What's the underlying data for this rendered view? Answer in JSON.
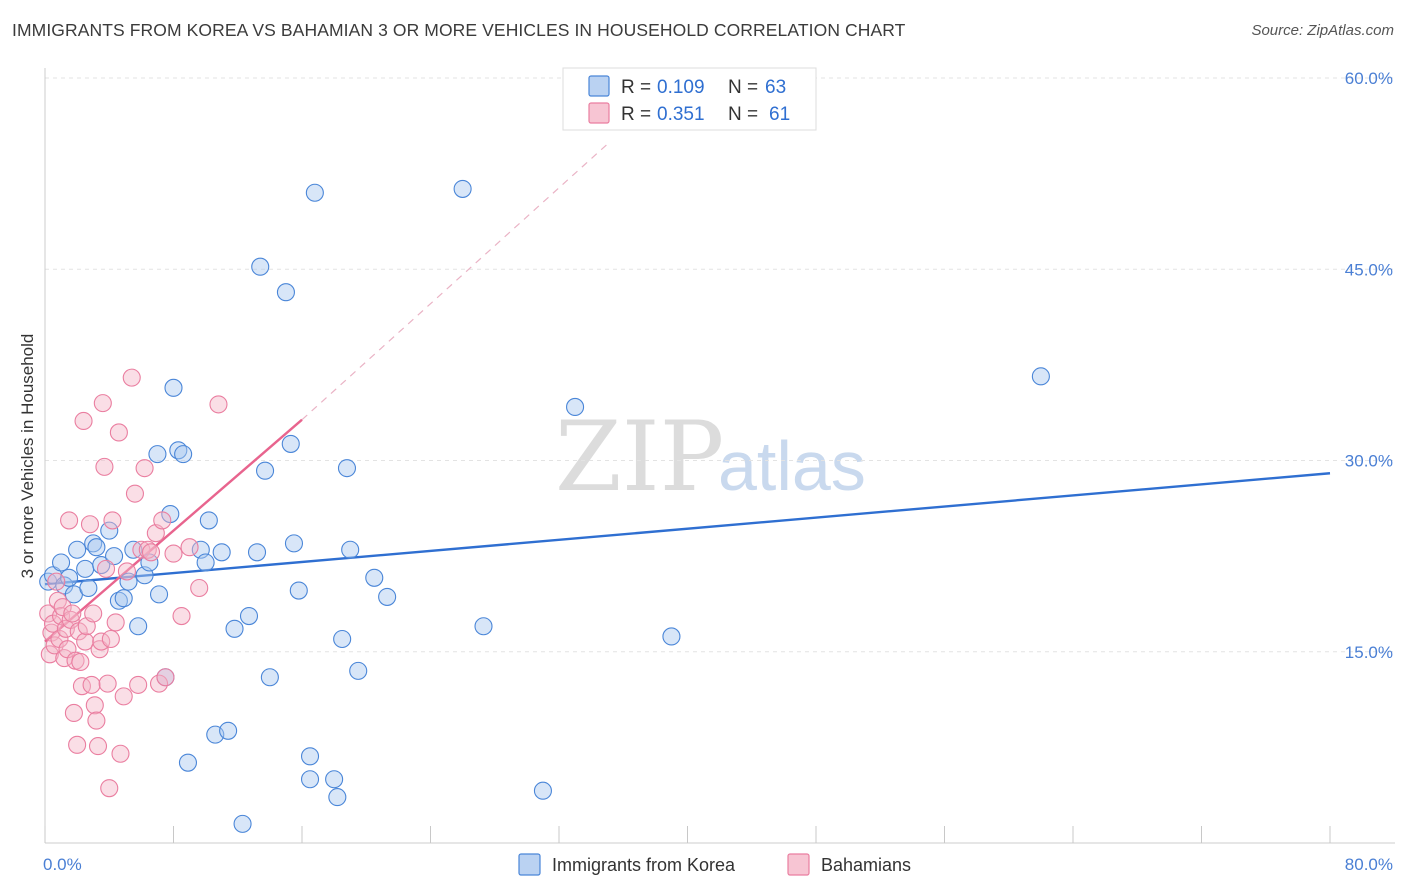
{
  "title": "IMMIGRANTS FROM KOREA VS BAHAMIAN 3 OR MORE VEHICLES IN HOUSEHOLD CORRELATION CHART",
  "source": "Source: ZipAtlas.com",
  "watermark": {
    "zip": "ZIP",
    "atlas": "atlas"
  },
  "legend": {
    "r_label": "R =",
    "n_label": "N =",
    "rows": [
      {
        "r": "0.109",
        "n": "63",
        "color": "#a9c7ef"
      },
      {
        "r": "0.351",
        "n": "61",
        "color": "#f5b6c8"
      }
    ]
  },
  "chart_data": {
    "type": "scatter",
    "title": "IMMIGRANTS FROM KOREA VS BAHAMIAN 3 OR MORE VEHICLES IN HOUSEHOLD CORRELATION CHART",
    "xlabel": "",
    "ylabel": "3 or more Vehicles in Household",
    "xlim": [
      0,
      80
    ],
    "ylim": [
      0,
      60
    ],
    "x_tick_labels": [
      "0.0%",
      "80.0%"
    ],
    "y_ticks": [
      15,
      30,
      45,
      60
    ],
    "y_tick_labels": [
      "15.0%",
      "30.0%",
      "45.0%",
      "60.0%"
    ],
    "grid": true,
    "legend_position": "top-center",
    "series": [
      {
        "name": "Immigrants from Korea",
        "color": "#4a86d8",
        "fill": "#a9c7ef",
        "trend": {
          "x": [
            0,
            80
          ],
          "y": [
            20.3,
            29.0
          ],
          "color": "#2f6fd1"
        },
        "points": [
          [
            0.2,
            20.5
          ],
          [
            0.5,
            21.0
          ],
          [
            1.0,
            22.0
          ],
          [
            1.2,
            20.2
          ],
          [
            1.5,
            20.8
          ],
          [
            1.8,
            19.5
          ],
          [
            2.0,
            23.0
          ],
          [
            2.5,
            21.5
          ],
          [
            2.7,
            20.0
          ],
          [
            3.0,
            23.5
          ],
          [
            3.2,
            23.2
          ],
          [
            3.5,
            21.8
          ],
          [
            4.0,
            24.5
          ],
          [
            4.3,
            22.5
          ],
          [
            4.6,
            19.0
          ],
          [
            4.9,
            19.2
          ],
          [
            5.2,
            20.5
          ],
          [
            5.5,
            23.0
          ],
          [
            5.8,
            17.0
          ],
          [
            6.2,
            21.0
          ],
          [
            6.5,
            22.0
          ],
          [
            7.0,
            30.5
          ],
          [
            7.1,
            19.5
          ],
          [
            7.5,
            13.0
          ],
          [
            7.8,
            25.8
          ],
          [
            8.0,
            35.7
          ],
          [
            8.3,
            30.8
          ],
          [
            8.6,
            30.5
          ],
          [
            8.9,
            6.3
          ],
          [
            9.7,
            23.0
          ],
          [
            10.0,
            22.0
          ],
          [
            10.2,
            25.3
          ],
          [
            10.6,
            8.5
          ],
          [
            11.0,
            22.8
          ],
          [
            11.4,
            8.8
          ],
          [
            11.8,
            16.8
          ],
          [
            12.3,
            1.5
          ],
          [
            12.7,
            17.8
          ],
          [
            13.2,
            22.8
          ],
          [
            13.4,
            45.2
          ],
          [
            13.7,
            29.2
          ],
          [
            14.0,
            13.0
          ],
          [
            15.0,
            43.2
          ],
          [
            15.3,
            31.3
          ],
          [
            15.5,
            23.5
          ],
          [
            15.8,
            19.8
          ],
          [
            16.5,
            6.8
          ],
          [
            16.5,
            5.0
          ],
          [
            16.8,
            51.0
          ],
          [
            18.0,
            5.0
          ],
          [
            18.2,
            3.6
          ],
          [
            18.5,
            16.0
          ],
          [
            18.8,
            29.4
          ],
          [
            19.0,
            23.0
          ],
          [
            19.5,
            13.5
          ],
          [
            20.5,
            20.8
          ],
          [
            21.3,
            19.3
          ],
          [
            26.0,
            51.3
          ],
          [
            27.3,
            17.0
          ],
          [
            31.0,
            4.1
          ],
          [
            33.0,
            34.2
          ],
          [
            39.0,
            16.2
          ],
          [
            62.0,
            36.6
          ]
        ]
      },
      {
        "name": "Bahamians",
        "color": "#ea7ea0",
        "fill": "#f5b6c8",
        "trend": {
          "x": [
            0,
            16
          ],
          "y": [
            15.8,
            33.2
          ],
          "color": "#e8648e"
        },
        "trend_extension": {
          "x": [
            16,
            35
          ],
          "y": [
            33.2,
            54.8
          ]
        },
        "points": [
          [
            0.2,
            18.0
          ],
          [
            0.3,
            14.8
          ],
          [
            0.4,
            16.5
          ],
          [
            0.5,
            17.2
          ],
          [
            0.6,
            15.5
          ],
          [
            0.7,
            20.5
          ],
          [
            0.8,
            19.0
          ],
          [
            0.9,
            16.0
          ],
          [
            1.0,
            17.8
          ],
          [
            1.1,
            18.5
          ],
          [
            1.2,
            14.5
          ],
          [
            1.3,
            16.8
          ],
          [
            1.4,
            15.2
          ],
          [
            1.5,
            25.3
          ],
          [
            1.6,
            17.5
          ],
          [
            1.7,
            18.0
          ],
          [
            1.8,
            10.2
          ],
          [
            1.9,
            14.3
          ],
          [
            2.0,
            7.7
          ],
          [
            2.1,
            16.6
          ],
          [
            2.2,
            14.2
          ],
          [
            2.3,
            12.3
          ],
          [
            2.4,
            33.1
          ],
          [
            2.5,
            15.8
          ],
          [
            2.6,
            17.0
          ],
          [
            2.8,
            25.0
          ],
          [
            2.9,
            12.4
          ],
          [
            3.0,
            18.0
          ],
          [
            3.1,
            10.8
          ],
          [
            3.2,
            9.6
          ],
          [
            3.3,
            7.6
          ],
          [
            3.4,
            15.2
          ],
          [
            3.5,
            15.8
          ],
          [
            3.6,
            34.5
          ],
          [
            3.7,
            29.5
          ],
          [
            3.8,
            21.5
          ],
          [
            3.9,
            12.5
          ],
          [
            4.0,
            4.3
          ],
          [
            4.1,
            16.0
          ],
          [
            4.2,
            25.3
          ],
          [
            4.4,
            17.3
          ],
          [
            4.6,
            32.2
          ],
          [
            4.7,
            7.0
          ],
          [
            4.9,
            11.5
          ],
          [
            5.1,
            21.3
          ],
          [
            5.4,
            36.5
          ],
          [
            5.6,
            27.4
          ],
          [
            5.8,
            12.4
          ],
          [
            6.0,
            23.0
          ],
          [
            6.2,
            29.4
          ],
          [
            6.4,
            23.0
          ],
          [
            6.6,
            22.8
          ],
          [
            6.9,
            24.3
          ],
          [
            7.1,
            12.5
          ],
          [
            7.3,
            25.3
          ],
          [
            7.5,
            13.0
          ],
          [
            8.0,
            22.7
          ],
          [
            8.5,
            17.8
          ],
          [
            9.0,
            23.2
          ],
          [
            9.6,
            20.0
          ],
          [
            10.8,
            34.4
          ]
        ]
      }
    ]
  },
  "bottom_legend": [
    "Immigrants from Korea",
    "Bahamians"
  ]
}
